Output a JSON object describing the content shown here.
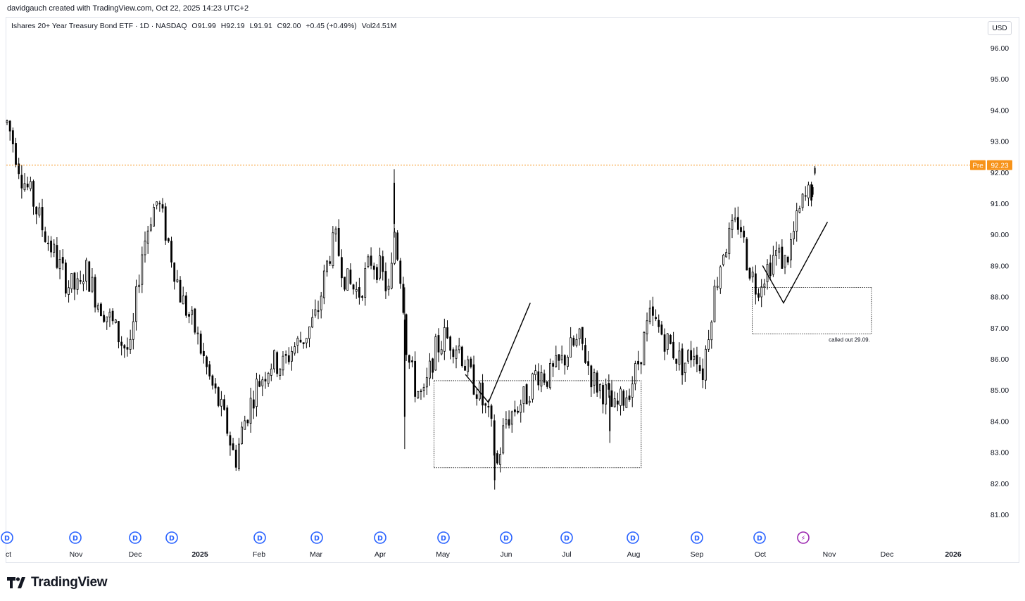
{
  "caption": "davidgauch created with TradingView.com, Oct 22, 2025 14:23 UTC+2",
  "legend": {
    "name": "Ishares 20+ Year Treasury Bond ETF · 1D · NASDAQ",
    "open": "O91.99",
    "high": "H92.19",
    "low": "L91.91",
    "close": "C92.00",
    "change": "+0.45 (+0.49%)",
    "volume": "Vol24.51M"
  },
  "currency_button": "USD",
  "pre_label": "Pre",
  "pre_value": "92.23",
  "annotation": "called out 29.09.",
  "brand": "TradingView",
  "colors": {
    "pre_line": "#f7931a",
    "event_blue": "#2962ff",
    "event_purple": "#9c27b0",
    "candle": "#000000"
  },
  "chart_data": {
    "type": "candlestick",
    "ylim": [
      80.6,
      96.6
    ],
    "y_ticks": [
      "96.00",
      "95.00",
      "94.00",
      "93.00",
      "92.00",
      "91.00",
      "90.00",
      "89.00",
      "88.00",
      "87.00",
      "86.00",
      "85.00",
      "84.00",
      "83.00",
      "82.00",
      "81.00"
    ],
    "x_labels": [
      "ct",
      "Nov",
      "Dec",
      "2025",
      "Feb",
      "Mar",
      "Apr",
      "May",
      "Jun",
      "Jul",
      "Aug",
      "Sep",
      "Oct",
      "Nov",
      "Dec",
      "2026"
    ],
    "event_markers": [
      "D",
      "D",
      "D",
      "D",
      "D",
      "D",
      "D",
      "D",
      "D",
      "D",
      "D",
      "D",
      "D",
      "⚡"
    ],
    "pre_market_price": 92.23,
    "path": [
      [
        "2024-10-01",
        93.6
      ],
      [
        "2024-10-03",
        93.2
      ],
      [
        "2024-10-08",
        91.9
      ],
      [
        "2024-10-14",
        91.0
      ],
      [
        "2024-10-18",
        90.2
      ],
      [
        "2024-10-24",
        89.3
      ],
      [
        "2024-10-30",
        88.4
      ],
      [
        "2024-11-05",
        88.2
      ],
      [
        "2024-11-07",
        89.0
      ],
      [
        "2024-11-13",
        87.9
      ],
      [
        "2024-11-19",
        87.3
      ],
      [
        "2024-11-25",
        86.5
      ],
      [
        "2024-11-29",
        86.2
      ],
      [
        "2024-12-04",
        89.3
      ],
      [
        "2024-12-09",
        90.7
      ],
      [
        "2024-12-12",
        91.1
      ],
      [
        "2024-12-18",
        89.5
      ],
      [
        "2024-12-23",
        88.0
      ],
      [
        "2024-12-30",
        86.9
      ],
      [
        "2025-01-06",
        85.3
      ],
      [
        "2025-01-10",
        84.6
      ],
      [
        "2025-01-14",
        83.8
      ],
      [
        "2025-01-18",
        82.7
      ],
      [
        "2025-01-22",
        83.9
      ],
      [
        "2025-01-28",
        85.1
      ],
      [
        "2025-02-04",
        85.9
      ],
      [
        "2025-02-10",
        85.8
      ],
      [
        "2025-02-14",
        86.3
      ],
      [
        "2025-02-20",
        86.7
      ],
      [
        "2025-02-26",
        87.4
      ],
      [
        "2025-03-04",
        89.4
      ],
      [
        "2025-03-07",
        89.8
      ],
      [
        "2025-03-12",
        88.5
      ],
      [
        "2025-03-18",
        88.1
      ],
      [
        "2025-03-24",
        89.2
      ],
      [
        "2025-03-28",
        88.9
      ],
      [
        "2025-04-02",
        88.0
      ],
      [
        "2025-04-04",
        90.2
      ],
      [
        "2025-04-08",
        88.2
      ],
      [
        "2025-04-10",
        86.2
      ],
      [
        "2025-04-14",
        85.1
      ],
      [
        "2025-04-18",
        84.7
      ],
      [
        "2025-04-23",
        86.2
      ],
      [
        "2025-04-28",
        86.7
      ],
      [
        "2025-05-05",
        86.4
      ],
      [
        "2025-05-09",
        85.6
      ],
      [
        "2025-05-14",
        85.0
      ],
      [
        "2025-05-20",
        83.9
      ],
      [
        "2025-05-23",
        82.5
      ],
      [
        "2025-05-27",
        84.0
      ],
      [
        "2025-06-02",
        84.5
      ],
      [
        "2025-06-06",
        84.8
      ],
      [
        "2025-06-11",
        85.6
      ],
      [
        "2025-06-17",
        85.4
      ],
      [
        "2025-06-23",
        85.9
      ],
      [
        "2025-06-27",
        86.3
      ],
      [
        "2025-07-02",
        86.6
      ],
      [
        "2025-07-08",
        85.3
      ],
      [
        "2025-07-14",
        84.9
      ],
      [
        "2025-07-18",
        84.3
      ],
      [
        "2025-07-24",
        84.9
      ],
      [
        "2025-07-28",
        85.5
      ],
      [
        "2025-08-04",
        87.3
      ],
      [
        "2025-08-08",
        87.0
      ],
      [
        "2025-08-14",
        86.4
      ],
      [
        "2025-08-20",
        85.8
      ],
      [
        "2025-08-26",
        86.4
      ],
      [
        "2025-08-29",
        85.4
      ],
      [
        "2025-09-03",
        87.8
      ],
      [
        "2025-09-08",
        89.5
      ],
      [
        "2025-09-12",
        90.0
      ],
      [
        "2025-09-16",
        90.5
      ],
      [
        "2025-09-19",
        89.3
      ],
      [
        "2025-09-24",
        88.3
      ],
      [
        "2025-09-29",
        88.9
      ],
      [
        "2025-10-03",
        89.4
      ],
      [
        "2025-10-08",
        89.1
      ],
      [
        "2025-10-13",
        90.3
      ],
      [
        "2025-10-16",
        91.0
      ],
      [
        "2025-10-21",
        91.5
      ]
    ],
    "notable_points": [
      {
        "date": "2025-04-04",
        "high": 92.1,
        "low": 89.9
      },
      {
        "date": "2025-04-09",
        "high": 88.3,
        "low": 83.1
      },
      {
        "date": "2025-05-22",
        "high": 83.3,
        "low": 81.8
      },
      {
        "date": "2025-07-16",
        "high": 85.2,
        "low": 83.3
      },
      {
        "date": "2025-10-21",
        "high": 91.6,
        "low": 91.2
      },
      {
        "date": "2025-10-22",
        "high": 92.2,
        "low": 91.9
      }
    ],
    "drawings": {
      "boxes": [
        {
          "x1": "2025-04-23",
          "x2": "2025-07-31",
          "y1": 82.5,
          "y2": 85.3,
          "label": ""
        },
        {
          "x1": "2025-09-22",
          "x2": "2025-11-18",
          "y1": 86.8,
          "y2": 88.3,
          "label": "called out 29.09."
        }
      ],
      "lines": [
        [
          [
            "2025-05-08",
            85.5
          ],
          [
            "2025-05-19",
            84.6
          ],
          [
            "2025-06-08",
            87.8
          ]
        ],
        [
          [
            "2025-09-27",
            89.0
          ],
          [
            "2025-10-07",
            87.8
          ],
          [
            "2025-10-28",
            90.4
          ]
        ]
      ]
    }
  }
}
